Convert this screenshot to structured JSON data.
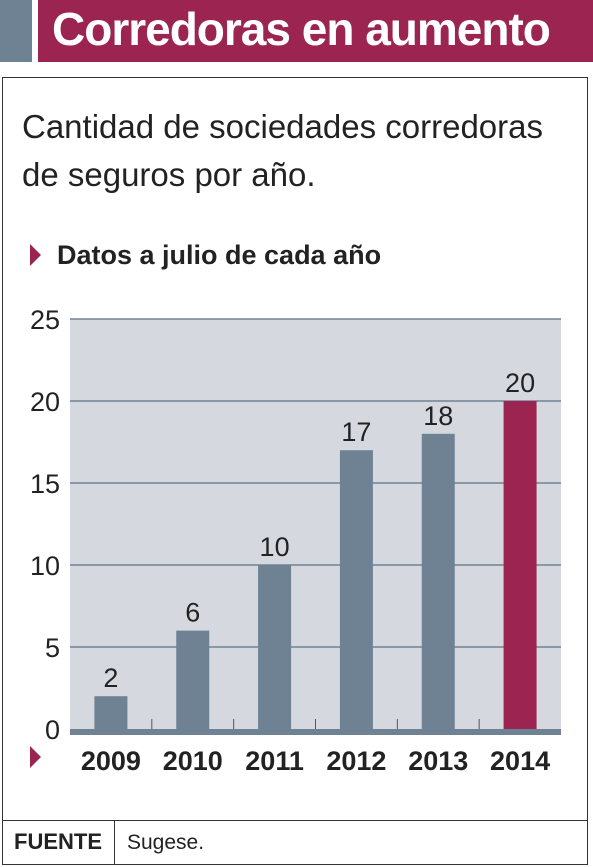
{
  "header": {
    "title": "Corredoras en aumento"
  },
  "subtitle": "Cantidad de sociedades corredoras de seguros por año.",
  "note": "Datos a julio de cada año",
  "colors": {
    "header_bg": "#9b2550",
    "header_accent": "#6e8294",
    "plot_bg": "#d5d9df",
    "bar": "#6e8294",
    "bar_highlight": "#9b2550",
    "gridline": "#6e8294"
  },
  "chart_data": {
    "type": "bar",
    "categories": [
      "2009",
      "2010",
      "2011",
      "2012",
      "2013",
      "2014"
    ],
    "values": [
      2,
      6,
      10,
      17,
      18,
      20
    ],
    "data_labels": [
      "2",
      "6",
      "10",
      "17",
      "18",
      "20"
    ],
    "highlight_index": 5,
    "ylim": [
      0,
      25
    ],
    "yticks": [
      "0",
      "5",
      "10",
      "15",
      "20",
      "25"
    ],
    "xlabel": "",
    "ylabel": "",
    "grid": true
  },
  "footer": {
    "source_label": "FUENTE",
    "source_value": "Sugese."
  }
}
